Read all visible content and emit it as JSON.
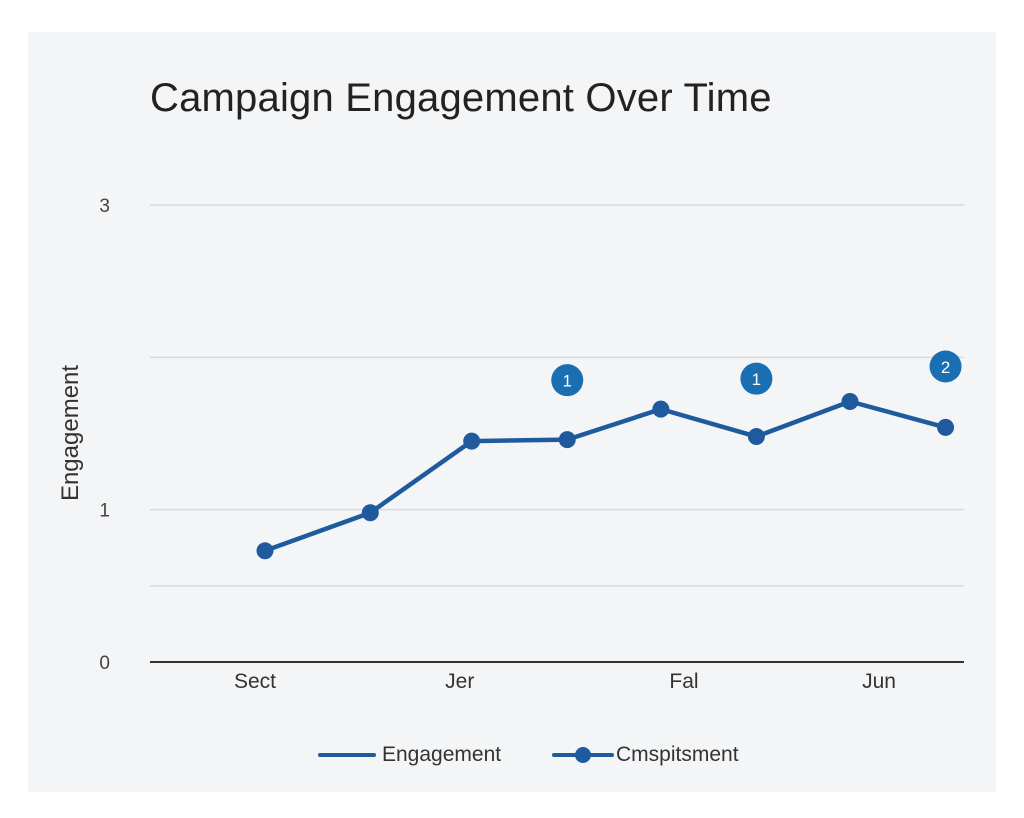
{
  "chart_data": {
    "type": "line",
    "title": "Campaign Engagement Over Time",
    "xlabel": "",
    "ylabel": "Engagement",
    "ylim": [
      0,
      3
    ],
    "y_ticks": [
      {
        "value": 0,
        "label": "0"
      },
      {
        "value": 1,
        "label": "1"
      },
      {
        "value": 3,
        "label": "3"
      }
    ],
    "y_gridlines": [
      0.5,
      1,
      2,
      3
    ],
    "x_ticks": [
      {
        "index": 0,
        "label": "Sect"
      },
      {
        "index": 2.1,
        "label": "Jer"
      },
      {
        "index": 4.4,
        "label": "Fal"
      },
      {
        "index": 6.4,
        "label": "Jun"
      }
    ],
    "series": [
      {
        "name": "Engagement",
        "color": "#1f5a9e",
        "values": [
          {
            "x": 0,
            "y": 0.73
          },
          {
            "x": 1.08,
            "y": 0.98
          },
          {
            "x": 2.12,
            "y": 1.45
          },
          {
            "x": 3.1,
            "y": 1.46
          },
          {
            "x": 4.06,
            "y": 1.66
          },
          {
            "x": 5.04,
            "y": 1.48
          },
          {
            "x": 6.0,
            "y": 1.71
          },
          {
            "x": 6.98,
            "y": 1.54
          }
        ]
      }
    ],
    "annotations": [
      {
        "x": 3.1,
        "y": 1.85,
        "label": "1"
      },
      {
        "x": 5.04,
        "y": 1.86,
        "label": "1"
      },
      {
        "x": 6.98,
        "y": 1.94,
        "label": "2"
      }
    ],
    "annotation_color": "#1a6fb3",
    "grid": true,
    "legend": {
      "position": "bottom",
      "entries": [
        {
          "label": "Engagement",
          "marker": "line"
        },
        {
          "label": "Cmspitsment",
          "marker": "line-dot"
        }
      ]
    },
    "colors": {
      "line": "#1f5a9e",
      "grid": "#d8dade",
      "axis": "#333333",
      "text": "#333333"
    }
  }
}
